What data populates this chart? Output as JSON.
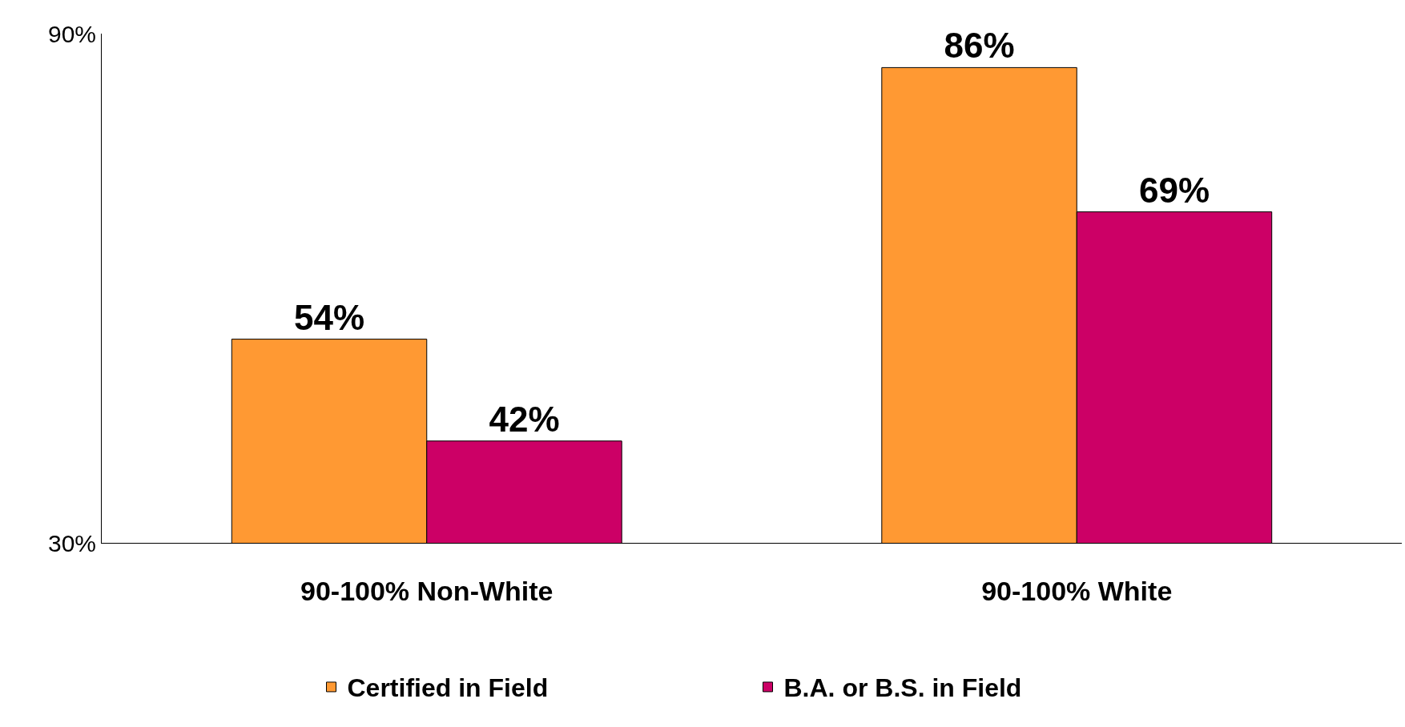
{
  "chart_data": {
    "type": "bar",
    "categories": [
      "90-100% Non-White",
      "90-100% White"
    ],
    "series": [
      {
        "name": "Certified in Field",
        "color": "#ff9933",
        "values": [
          54,
          86
        ],
        "value_labels": [
          "54%",
          "86%"
        ]
      },
      {
        "name": "B.A. or B.S. in Field",
        "color": "#cc0066",
        "values": [
          42,
          69
        ],
        "value_labels": [
          "42%",
          "69%"
        ]
      }
    ],
    "ylim": [
      30,
      90
    ],
    "yticks": [
      {
        "value": 30,
        "label": "30%"
      },
      {
        "value": 90,
        "label": "90%"
      }
    ],
    "legend": "bottom"
  }
}
